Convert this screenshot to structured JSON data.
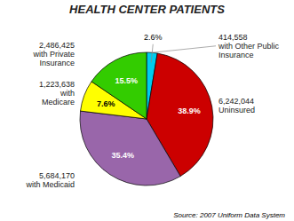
{
  "chart_data": {
    "type": "pie",
    "title": "HEALTH CENTER PATIENTS",
    "categories": [
      "414,558\nwith Other Public\nInsurance",
      "6,242,044\nUninsured",
      "5,684,170\nwith Medicaid",
      "1,223,638\nwith\nMedicare",
      "2,486,425\nwith Private\nInsurance"
    ],
    "values": [
      2.6,
      38.9,
      35.4,
      7.6,
      15.5
    ],
    "value_labels": [
      "2.6%",
      "38.9%",
      "35.4%",
      "7.6%",
      "15.5%"
    ],
    "colors": [
      "#00CCEE",
      "#CC0000",
      "#9966AA",
      "#FFFF00",
      "#33CC00"
    ],
    "data_labels": true,
    "annotations": [
      "Source: 2007 Uniform Data System"
    ]
  }
}
